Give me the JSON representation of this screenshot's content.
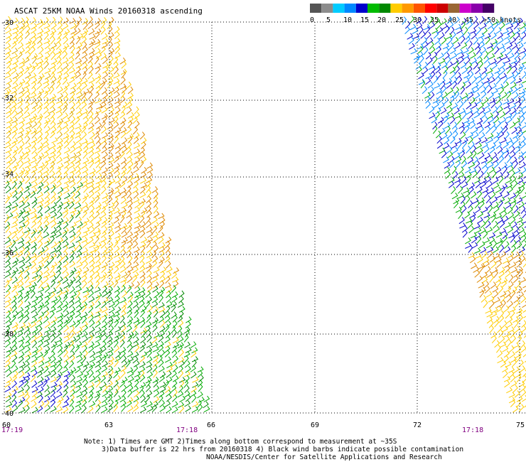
{
  "title": "ASCAT 25KM NOAA Winds 20160318 ascending",
  "legend": {
    "swatches": [
      "#555555",
      "#8c8c8c",
      "#00ccff",
      "#0088ff",
      "#0000cc",
      "#00bb00",
      "#008800",
      "#ffcc00",
      "#ff9900",
      "#ff5500",
      "#ff0000",
      "#cc0000",
      "#996633",
      "#cc00cc",
      "#8800aa",
      "#440066"
    ],
    "ticks": [
      "0",
      "5",
      "10",
      "15",
      "20",
      "25",
      "30",
      "35",
      "40",
      "45",
      ">50 knots"
    ]
  },
  "axes": {
    "lat_labels": [
      "-30",
      "-32",
      "-34",
      "-36",
      "-38",
      "-40"
    ],
    "lon_labels": [
      "60",
      "63",
      "66",
      "69",
      "72",
      "75"
    ]
  },
  "times": {
    "left_swath_start": "17:19",
    "left_swath_end": "17:18",
    "right_swath_end": "17:18"
  },
  "notes": {
    "line1": "Note: 1) Times are GMT 2)Times along bottom correspond to measurement at ~35S",
    "line2": "3)Data buffer is 22 hrs from 20160318 4) Black wind barbs indicate possible contamination",
    "line3": "NOAA/NESDIS/Center for Satellite Applications and Research"
  },
  "colors": {
    "grid": "#000000",
    "time": "#800080"
  }
}
